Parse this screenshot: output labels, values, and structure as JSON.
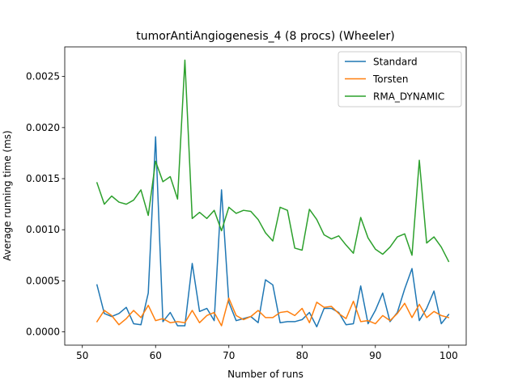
{
  "chart_data": {
    "type": "line",
    "title": "tumorAntiAngiogenesis_4 (8 procs) (Wheeler)",
    "xlabel": "Number of runs",
    "ylabel": "Average running time (ms)",
    "xlim": [
      47.6,
      102.4
    ],
    "ylim": [
      -0.00013,
      0.00279
    ],
    "xticks": [
      50,
      60,
      70,
      80,
      90,
      100
    ],
    "xtick_labels": [
      "50",
      "60",
      "70",
      "80",
      "90",
      "100"
    ],
    "yticks": [
      0.0,
      0.0005,
      0.001,
      0.0015,
      0.002,
      0.0025
    ],
    "ytick_labels": [
      "0.0000",
      "0.0005",
      "0.0010",
      "0.0015",
      "0.0020",
      "0.0025"
    ],
    "legend_position": "top-right",
    "grid": false,
    "x": [
      52,
      53,
      54,
      55,
      56,
      57,
      58,
      59,
      60,
      61,
      62,
      63,
      64,
      65,
      66,
      67,
      68,
      69,
      70,
      71,
      72,
      73,
      74,
      75,
      76,
      77,
      78,
      79,
      80,
      81,
      82,
      83,
      84,
      85,
      86,
      87,
      88,
      89,
      90,
      91,
      92,
      93,
      94,
      95,
      96,
      97,
      98,
      99,
      100
    ],
    "series": [
      {
        "name": "Standard",
        "color": "#1f77b4",
        "values": [
          0.00046,
          0.00018,
          0.00015,
          0.00018,
          0.00024,
          8e-05,
          7e-05,
          0.00038,
          0.00191,
          0.0001,
          0.00019,
          6e-05,
          6e-05,
          0.00067,
          0.0002,
          0.00023,
          0.00011,
          0.00139,
          0.00029,
          0.00011,
          0.00013,
          0.00015,
          9e-05,
          0.00051,
          0.00046,
          9e-05,
          0.0001,
          0.0001,
          0.00012,
          0.00019,
          5e-05,
          0.00023,
          0.00023,
          0.00019,
          7e-05,
          8e-05,
          0.00045,
          8e-05,
          0.00021,
          0.00038,
          0.0001,
          0.00019,
          0.00042,
          0.00062,
          0.00011,
          0.00023,
          0.0004,
          8e-05,
          0.00017
        ]
      },
      {
        "name": "Torsten",
        "color": "#ff7f0e",
        "values": [
          0.0001,
          0.00021,
          0.00016,
          7e-05,
          0.00013,
          0.00021,
          0.00014,
          0.00026,
          0.00011,
          0.00013,
          9e-05,
          0.0001,
          9e-05,
          0.00021,
          9e-05,
          0.00016,
          0.00019,
          6e-05,
          0.00033,
          0.00016,
          0.00012,
          0.00015,
          0.00021,
          0.00014,
          0.00014,
          0.00019,
          0.0002,
          0.00016,
          0.00023,
          9e-05,
          0.00029,
          0.00024,
          0.00025,
          0.00018,
          0.00013,
          0.0003,
          0.0001,
          0.00011,
          8e-05,
          0.00016,
          0.00011,
          0.00018,
          0.00028,
          0.00014,
          0.00027,
          0.00014,
          0.0002,
          0.00016,
          0.00014
        ]
      },
      {
        "name": "RMA_DYNAMIC",
        "color": "#2ca02c",
        "values": [
          0.00146,
          0.00125,
          0.00133,
          0.00127,
          0.00125,
          0.00129,
          0.00139,
          0.00114,
          0.00167,
          0.00147,
          0.00152,
          0.0013,
          0.00266,
          0.00111,
          0.00117,
          0.00111,
          0.00119,
          0.00099,
          0.00122,
          0.00116,
          0.00119,
          0.00118,
          0.0011,
          0.00097,
          0.00089,
          0.00122,
          0.00119,
          0.00082,
          0.0008,
          0.0012,
          0.0011,
          0.00095,
          0.00091,
          0.00094,
          0.00085,
          0.00077,
          0.00112,
          0.00092,
          0.00081,
          0.00076,
          0.00083,
          0.00093,
          0.00096,
          0.00075,
          0.00168,
          0.00087,
          0.00093,
          0.00083,
          0.00069
        ]
      }
    ]
  }
}
